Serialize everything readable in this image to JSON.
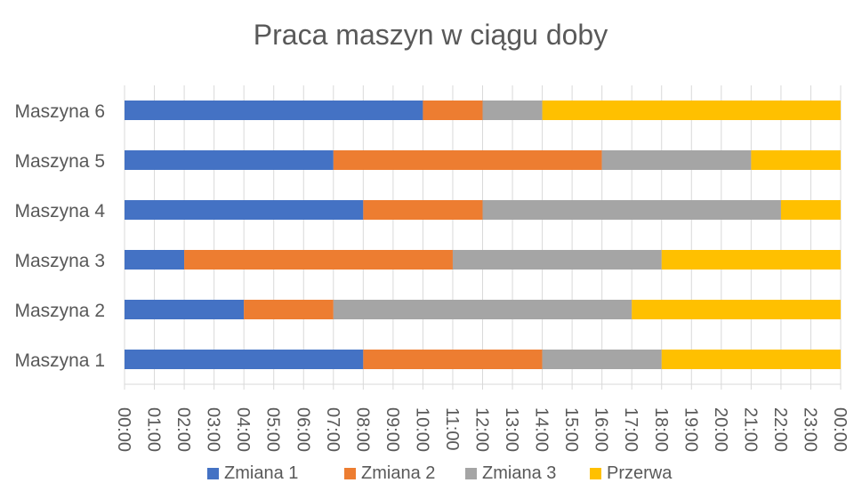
{
  "chart_data": {
    "type": "bar",
    "orientation": "horizontal",
    "stacked": true,
    "title": "Praca maszyn w ciągu doby",
    "categories": [
      "Maszyna 1",
      "Maszyna 2",
      "Maszyna 3",
      "Maszyna 4",
      "Maszyna 5",
      "Maszyna 6"
    ],
    "x_ticks": [
      "00:00",
      "01:00",
      "02:00",
      "03:00",
      "04:00",
      "05:00",
      "06:00",
      "07:00",
      "08:00",
      "09:00",
      "10:00",
      "11:00",
      "12:00",
      "13:00",
      "14:00",
      "15:00",
      "16:00",
      "17:00",
      "18:00",
      "19:00",
      "20:00",
      "21:00",
      "22:00",
      "23:00",
      "00:00"
    ],
    "xlim_hours": [
      0,
      24
    ],
    "grid": true,
    "legend_position": "bottom",
    "series": [
      {
        "name": "Zmiana 1",
        "color": "#4472C4",
        "values_hours": [
          8,
          4,
          2,
          8,
          7,
          10
        ]
      },
      {
        "name": "Zmiana 2",
        "color": "#ED7D31",
        "values_hours": [
          6,
          3,
          9,
          4,
          9,
          2
        ]
      },
      {
        "name": "Zmiana 3",
        "color": "#A5A5A5",
        "values_hours": [
          4,
          10,
          7,
          10,
          5,
          2
        ]
      },
      {
        "name": "Przerwa",
        "color": "#FFC000",
        "values_hours": [
          6,
          7,
          6,
          2,
          3,
          10
        ]
      }
    ]
  }
}
